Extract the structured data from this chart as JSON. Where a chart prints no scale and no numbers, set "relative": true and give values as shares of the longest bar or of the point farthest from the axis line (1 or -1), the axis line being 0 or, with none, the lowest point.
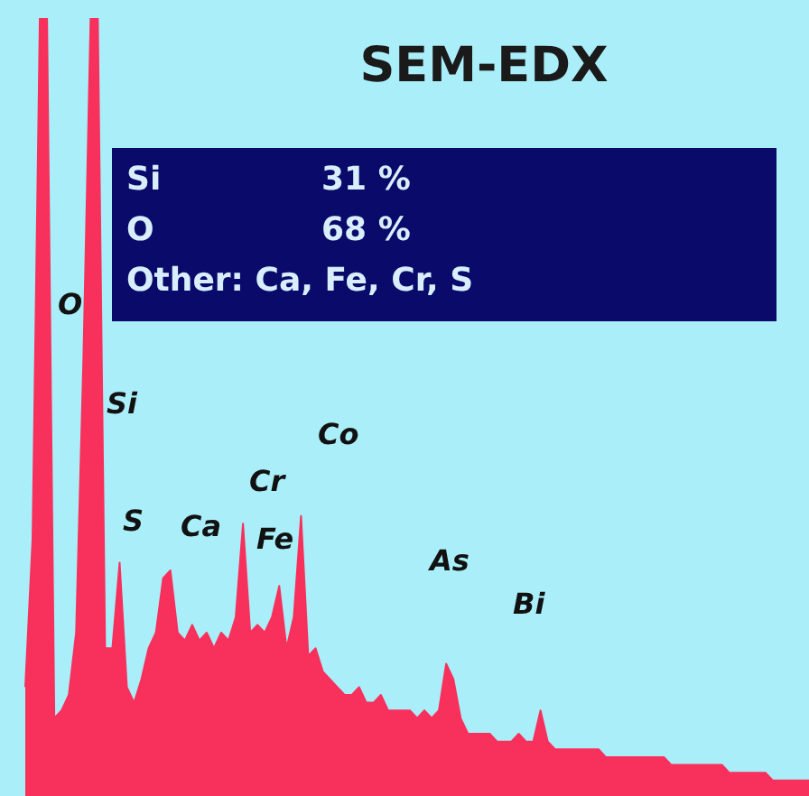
{
  "chart_data": {
    "type": "area",
    "title": "SEM-EDX",
    "relative": true,
    "color": "#f8305c",
    "categories": [
      null,
      null,
      null,
      null,
      null,
      null,
      null,
      null,
      null,
      null,
      null,
      null,
      null,
      null,
      null,
      null,
      null,
      null,
      null,
      null,
      null,
      null,
      null,
      null,
      null,
      null,
      null,
      null,
      null,
      null,
      null,
      null,
      null,
      null,
      null,
      null,
      null,
      null,
      null,
      null,
      null,
      null,
      null,
      null,
      null,
      null,
      null,
      null,
      null,
      null,
      null,
      null,
      null,
      null,
      null,
      null,
      null,
      null,
      null,
      null,
      null,
      null,
      null,
      null,
      null,
      null,
      null,
      null,
      null,
      null,
      null,
      null,
      null,
      null,
      null,
      null,
      null,
      null,
      null,
      null,
      null,
      null,
      null,
      null,
      null,
      null,
      null,
      null,
      null,
      null,
      null,
      null,
      null,
      null,
      null,
      null,
      null,
      null,
      null,
      null,
      null,
      null,
      null,
      null,
      null,
      null,
      null,
      null,
      null
    ],
    "values": [
      0.14,
      0.33,
      1,
      1,
      0.1,
      0.11,
      0.13,
      0.21,
      0.56,
      1,
      1,
      0.19,
      0.19,
      0.3,
      0.14,
      0.12,
      0.15,
      0.19,
      0.21,
      0.28,
      0.29,
      0.21,
      0.2,
      0.22,
      0.2,
      0.21,
      0.19,
      0.21,
      0.2,
      0.23,
      0.35,
      0.21,
      0.22,
      0.21,
      0.23,
      0.27,
      0.19,
      0.23,
      0.36,
      0.18,
      0.19,
      0.16,
      0.15,
      0.14,
      0.13,
      0.13,
      0.14,
      0.12,
      0.12,
      0.13,
      0.11,
      0.11,
      0.11,
      0.11,
      0.1,
      0.11,
      0.1,
      0.11,
      0.17,
      0.15,
      0.1,
      0.08,
      0.08,
      0.08,
      0.08,
      0.07,
      0.07,
      0.07,
      0.08,
      0.07,
      0.07,
      0.11,
      0.07,
      0.06,
      0.06,
      0.06,
      0.06,
      0.06,
      0.06,
      0.06,
      0.05,
      0.05,
      0.05,
      0.05,
      0.05,
      0.05,
      0.05,
      0.05,
      0.05,
      0.04,
      0.04,
      0.04,
      0.04,
      0.04,
      0.04,
      0.04,
      0.04,
      0.03,
      0.03,
      0.03,
      0.03,
      0.03,
      0.03,
      0.02,
      0.02,
      0.02,
      0.02,
      0.02,
      0.02
    ],
    "annotations": [
      "O",
      "Si",
      "S",
      "Ca",
      "Cr",
      "Fe",
      "Co",
      "As",
      "Bi",
      "Si",
      "31 %",
      "O",
      "68 %",
      "Other: Ca, Fe, Cr, S"
    ]
  }
}
